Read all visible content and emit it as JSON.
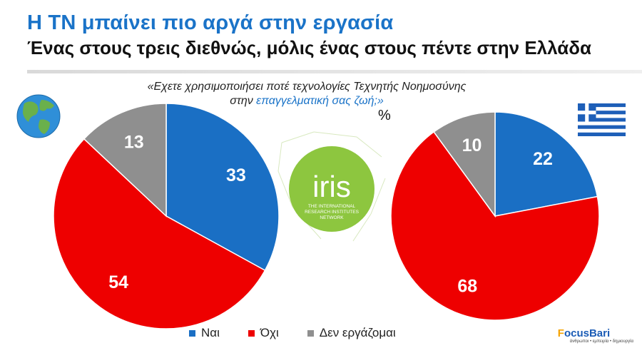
{
  "header": {
    "title": "Η ΤΝ μπαίνει πιο αργά στην εργασία",
    "subtitle": "Ένας στους τρεις διεθνώς, μόλις ένας στους πέντε στην Ελλάδα"
  },
  "question": {
    "line1": "«Εχετε χρησιμοποιήσει ποτέ τεχνολογίες Τεχνητής Νοημοσύνης",
    "line2_prefix": "στην ",
    "line2_highlight": "επαγγελματική σας ζωή;»"
  },
  "unit": "%",
  "center_logo": {
    "name": "iris",
    "caption_lines": [
      "THE INTERNATIONAL",
      "RESEARCH INSTITUTES",
      "NETWORK"
    ],
    "color": "#8dc63f"
  },
  "brand": {
    "name_prefix": "F",
    "name_rest": "ocusBari",
    "tagline": "άνθρωποι • εμπειρία • δημιουργία"
  },
  "colors": {
    "title": "#1a73c8",
    "yes": "#1a6fc4",
    "no": "#ee0000",
    "not_working": "#8f8f8f"
  },
  "chart_data": [
    {
      "type": "pie",
      "region_icon": "globe-icon",
      "categories": [
        "Ναι",
        "Όχι",
        "Δεν εργάζομαι"
      ],
      "values": [
        33,
        54,
        13
      ],
      "start": "12 o'clock",
      "direction": "clockwise"
    },
    {
      "type": "pie",
      "region_icon": "greek-flag-icon",
      "categories": [
        "Ναι",
        "Όχι",
        "Δεν εργάζομαι"
      ],
      "values": [
        22,
        68,
        10
      ],
      "start": "12 o'clock",
      "direction": "clockwise"
    }
  ],
  "legend": [
    {
      "label": "Ναι",
      "color": "#1a6fc4"
    },
    {
      "label": "Όχι",
      "color": "#ee0000"
    },
    {
      "label": "Δεν εργάζομαι",
      "color": "#8f8f8f"
    }
  ]
}
